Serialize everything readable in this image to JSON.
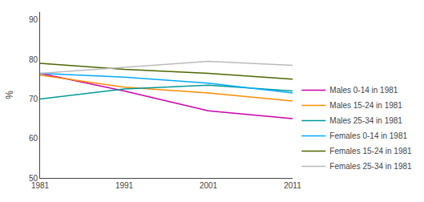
{
  "chart_data": {
    "type": "line",
    "ylabel": "%",
    "x": [
      1981,
      1991,
      2001,
      2011
    ],
    "series": [
      {
        "name": "Males 0-14 in 1981",
        "color": "#cc00aa",
        "values": [
          76.5,
          72.0,
          67.0,
          65.0
        ]
      },
      {
        "name": "Males 15-24 in 1981",
        "color": "#ff8c00",
        "values": [
          76.0,
          73.0,
          71.5,
          69.5
        ]
      },
      {
        "name": "Males 25-34 in 1981",
        "color": "#009999",
        "values": [
          70.0,
          72.5,
          73.5,
          72.0
        ]
      },
      {
        "name": "Females 0-14 in 1981",
        "color": "#00aaff",
        "values": [
          76.5,
          75.5,
          74.0,
          71.5
        ]
      },
      {
        "name": "Females 15-24 in 1981",
        "color": "#4d6600",
        "values": [
          79.0,
          77.5,
          76.5,
          75.0
        ]
      },
      {
        "name": "Females 25-34 in 1981",
        "color": "#bbbbbb",
        "values": [
          76.5,
          78.0,
          79.5,
          78.5
        ]
      }
    ],
    "xlim": [
      1981,
      2011
    ],
    "xticks": [
      1981,
      1991,
      2001,
      2011
    ],
    "ylim": [
      50,
      92
    ],
    "yticks": [
      50,
      60,
      70,
      80,
      90
    ],
    "grid": false,
    "legend": "lower right"
  }
}
